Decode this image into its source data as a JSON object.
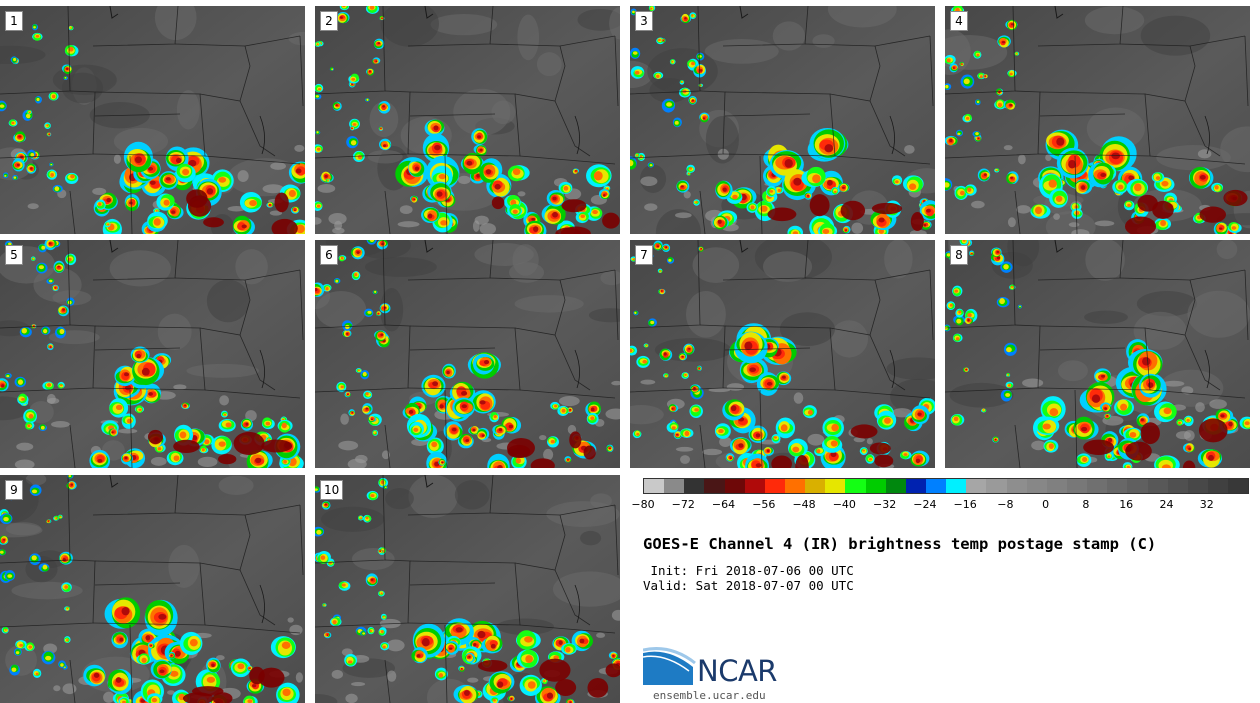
{
  "panels": [
    {
      "label": "1",
      "seed": 11
    },
    {
      "label": "2",
      "seed": 23
    },
    {
      "label": "3",
      "seed": 37
    },
    {
      "label": "4",
      "seed": 41
    },
    {
      "label": "5",
      "seed": 53
    },
    {
      "label": "6",
      "seed": 67
    },
    {
      "label": "7",
      "seed": 71
    },
    {
      "label": "8",
      "seed": 83
    },
    {
      "label": "9",
      "seed": 97
    },
    {
      "label": "10",
      "seed": 101
    }
  ],
  "colorbar": {
    "colors": [
      "#c9c9c9",
      "#8a8a8a",
      "#333333",
      "#4a1616",
      "#6e0808",
      "#b00a0a",
      "#ff2a0a",
      "#ff7000",
      "#d9b000",
      "#e6e600",
      "#14ff14",
      "#00cc00",
      "#00880e",
      "#0022b0",
      "#0080ff",
      "#00f0ff",
      "#a6a6a6",
      "#9a9a9a",
      "#8e8e8e",
      "#878787",
      "#808080",
      "#787878",
      "#707070",
      "#686868",
      "#606060",
      "#585858",
      "#505050",
      "#484848",
      "#404040",
      "#383838"
    ],
    "ticks": [
      "−80",
      "−72",
      "−64",
      "−56",
      "−48",
      "−40",
      "−32",
      "−24",
      "−16",
      "−8",
      "0",
      "8",
      "16",
      "24",
      "32"
    ],
    "min": -80,
    "max": 40
  },
  "title": "GOES-E Channel 4 (IR) brightness temp postage stamp (C)",
  "init_line": " Init: Fri 2018-07-06 00 UTC",
  "valid_line": "Valid: Sat 2018-07-07 00 UTC",
  "logo": {
    "text": "NCAR",
    "url": "ensemble.ucar.edu",
    "color": "#1b3a6b"
  }
}
